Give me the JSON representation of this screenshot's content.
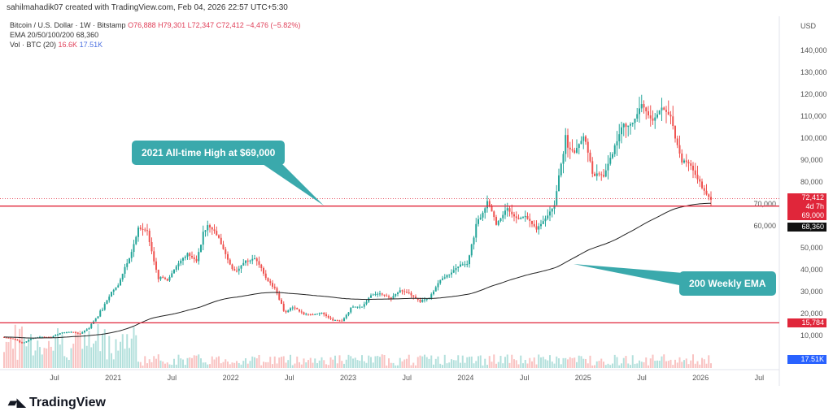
{
  "header": {
    "credit": "sahilmahadik07 created with TradingView.com, Feb 04, 2026 22:57 UTC+5:30",
    "symbol": "Bitcoin / U.S. Dollar · 1W · Bitstamp",
    "o": "O76,888",
    "h": "H79,301",
    "l": "L72,347",
    "c": "C72,412",
    "chg": "−4,476 (−5.82%)",
    "ema_label": "EMA 20/50/100/200",
    "ema_value": "68,360",
    "vol_label": "Vol · BTC (20)",
    "vol1": "16.6K",
    "vol2": "17.51K"
  },
  "axis": {
    "currency": "USD"
  },
  "tags": {
    "price": "72,412",
    "countdown": "4d 7h",
    "ath": "69,000",
    "ema": "68,360",
    "low": "15,784",
    "vol": "17.51K"
  },
  "annotations": {
    "ath": "2021 All-time High at $69,000",
    "ema": "200 Weekly EMA"
  },
  "logo": "TradingView",
  "colors": {
    "up": "#26a69a",
    "down": "#ef5350",
    "line": "#e0263a",
    "callout": "#3aa9ac"
  },
  "chart_data": {
    "type": "candlestick",
    "title": "Bitcoin / U.S. Dollar · 1W · Bitstamp",
    "ylabel": "USD",
    "ylim": [
      0,
      150000
    ],
    "yticks": [
      10000,
      20000,
      30000,
      40000,
      50000,
      60000,
      70000,
      80000,
      90000,
      100000,
      110000,
      120000,
      130000,
      140000
    ],
    "ytick_labels": [
      "10,000",
      "20,000",
      "30,000",
      "40,000",
      "50,000",
      "60,000",
      "70,000",
      "80,000",
      "90,000",
      "100,000",
      "110,000",
      "120,000",
      "130,000",
      "140,000"
    ],
    "xticks": [
      "Jul",
      "2021",
      "Jul",
      "2022",
      "Jul",
      "2023",
      "Jul",
      "2024",
      "Jul",
      "2025",
      "Jul",
      "2026",
      "Jul"
    ],
    "hlines": [
      69000,
      15784
    ],
    "monthly_closes_from_2020_01": [
      9300,
      8600,
      6400,
      8600,
      9400,
      9100,
      11300,
      11600,
      10800,
      13800,
      19700,
      29000,
      33000,
      45000,
      58800,
      57700,
      37300,
      35000,
      41500,
      47000,
      43800,
      61300,
      57000,
      46200,
      38500,
      43200,
      45500,
      37700,
      31800,
      19900,
      23300,
      20000,
      19400,
      20500,
      17200,
      16500,
      23100,
      23100,
      28500,
      29200,
      27200,
      30500,
      29200,
      26000,
      27000,
      34500,
      37700,
      42300,
      42600,
      61200,
      71300,
      60600,
      67500,
      62700,
      64600,
      59000,
      63300,
      70200,
      96400,
      93400,
      102000,
      84300,
      82500,
      94200,
      104600,
      107100,
      115700,
      108200,
      114000,
      109500,
      90400,
      87500,
      78600,
      72412
    ]
  }
}
